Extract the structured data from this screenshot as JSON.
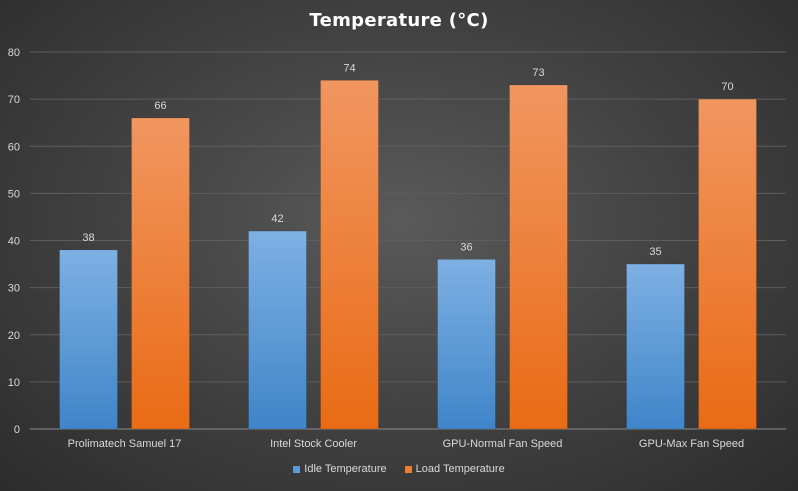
{
  "chart_data": {
    "type": "bar",
    "title": "Temperature  (°C)",
    "categories": [
      "Prolimatech Samuel 17",
      "Intel Stock Cooler",
      "GPU-Normal Fan Speed",
      "GPU-Max Fan Speed"
    ],
    "series": [
      {
        "name": "Idle Temperature",
        "values": [
          38,
          42,
          36,
          35
        ],
        "color": "#5b9bd5"
      },
      {
        "name": "Load Temperature",
        "values": [
          66,
          74,
          73,
          70
        ],
        "color": "#ed7d31"
      }
    ],
    "ylim": [
      0,
      80
    ],
    "yticks": [
      0,
      10,
      20,
      30,
      40,
      50,
      60,
      70,
      80
    ],
    "grid": true,
    "legend_position": "bottom",
    "data_labels": true
  }
}
